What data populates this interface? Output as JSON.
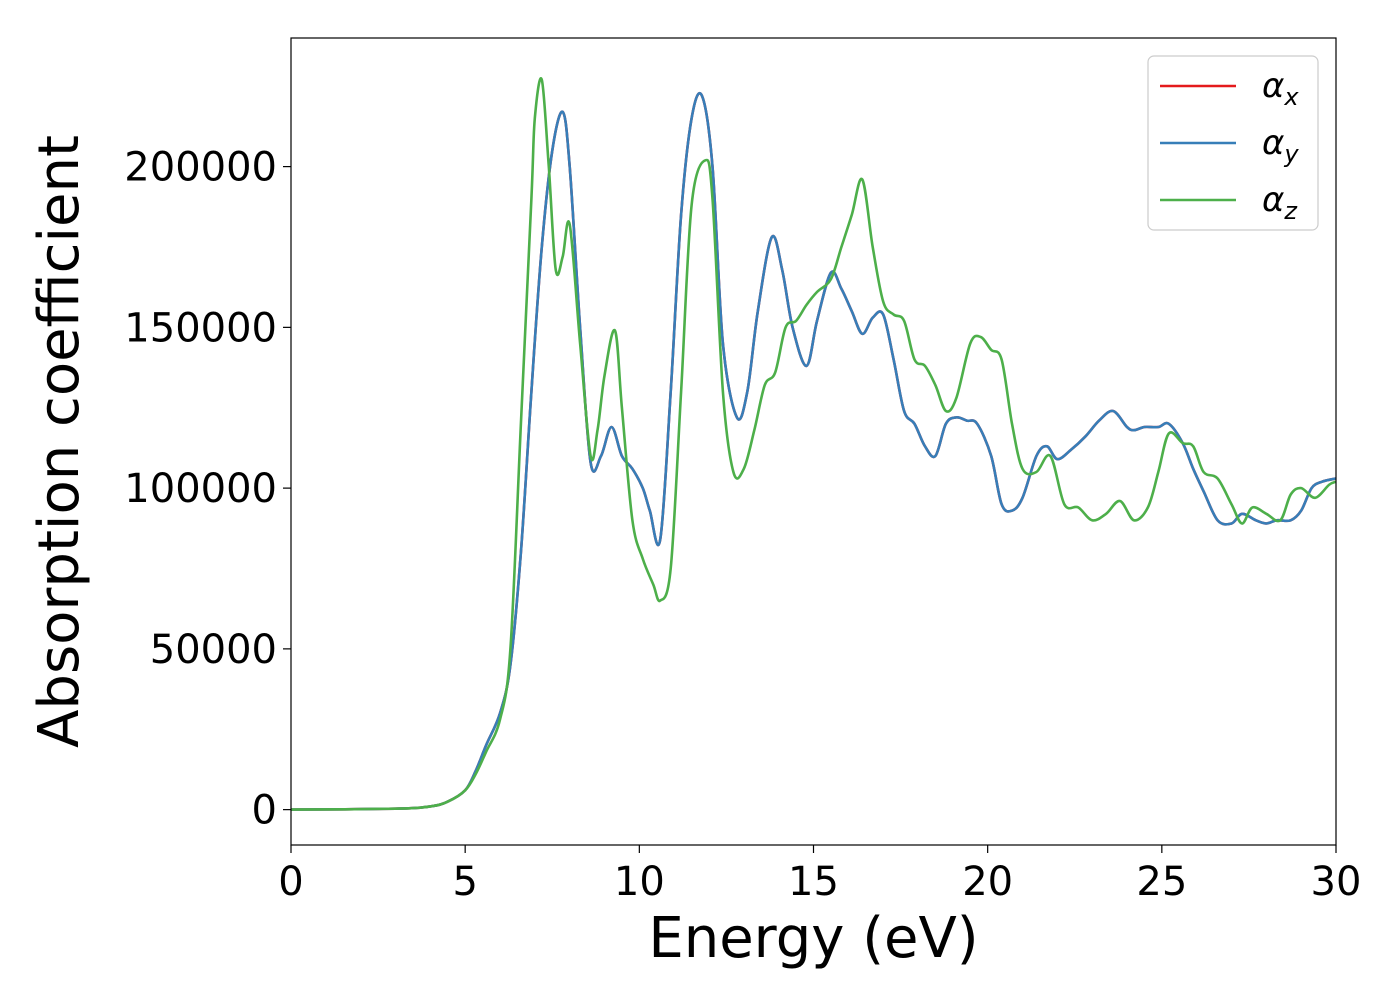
{
  "chart_data": {
    "type": "line",
    "title": "",
    "xlabel": "Energy (eV)",
    "ylabel": "Absorption coefficient",
    "xlim": [
      0,
      30
    ],
    "ylim": [
      -11000,
      240000
    ],
    "xticks": [
      0,
      5,
      10,
      15,
      20,
      25,
      30
    ],
    "yticks": [
      0,
      50000,
      100000,
      150000,
      200000
    ],
    "grid": false,
    "legend_position": "top-right",
    "series": [
      {
        "name": "α",
        "subscript": "x",
        "color": "#e41a1c",
        "x": [
          0,
          3,
          4,
          4.5,
          5,
          5.3,
          5.6,
          6,
          6.3,
          6.6,
          6.9,
          7.2,
          7.5,
          7.8,
          8.0,
          8.3,
          8.6,
          8.9,
          9.2,
          9.5,
          9.8,
          10.1,
          10.3,
          10.6,
          10.9,
          11.2,
          11.5,
          11.8,
          12.1,
          12.4,
          12.8,
          13.1,
          13.4,
          13.8,
          14.1,
          14.4,
          14.8,
          15.1,
          15.5,
          15.8,
          16.1,
          16.4,
          16.7,
          17.0,
          17.3,
          17.6,
          17.9,
          18.2,
          18.5,
          18.8,
          19.1,
          19.4,
          19.7,
          20.1,
          20.4,
          20.7,
          21.0,
          21.4,
          21.7,
          22.0,
          22.4,
          22.8,
          23.2,
          23.6,
          24.0,
          24.2,
          24.5,
          24.9,
          25.2,
          25.6,
          25.9,
          26.2,
          26.6,
          27.0,
          27.3,
          27.7,
          28.0,
          28.3,
          28.7,
          29.0,
          29.3,
          29.6,
          30.0
        ],
        "y": [
          0,
          300,
          1000,
          2500,
          6000,
          12000,
          20000,
          30000,
          45000,
          80000,
          130000,
          175000,
          205000,
          217000,
          200000,
          150000,
          108000,
          110000,
          119000,
          110000,
          106000,
          100000,
          93000,
          84000,
          130000,
          185000,
          215000,
          222000,
          200000,
          145000,
          122000,
          130000,
          155000,
          178000,
          168000,
          150000,
          138000,
          152000,
          167000,
          162000,
          155000,
          148000,
          153000,
          154000,
          140000,
          124000,
          120000,
          113000,
          110000,
          120000,
          122000,
          121000,
          120000,
          110000,
          95000,
          93000,
          97000,
          110000,
          113000,
          109000,
          112000,
          116000,
          121000,
          124000,
          119000,
          118000,
          119000,
          119000,
          120000,
          114000,
          106000,
          99000,
          90000,
          89000,
          92000,
          90000,
          89000,
          90000,
          90000,
          93000,
          100000,
          102000,
          103000
        ]
      },
      {
        "name": "α",
        "subscript": "y",
        "color": "#377eb8",
        "x": [
          0,
          3,
          4,
          4.5,
          5,
          5.3,
          5.6,
          6,
          6.3,
          6.6,
          6.9,
          7.2,
          7.5,
          7.8,
          8.0,
          8.3,
          8.6,
          8.9,
          9.2,
          9.5,
          9.8,
          10.1,
          10.3,
          10.6,
          10.9,
          11.2,
          11.5,
          11.8,
          12.1,
          12.4,
          12.8,
          13.1,
          13.4,
          13.8,
          14.1,
          14.4,
          14.8,
          15.1,
          15.5,
          15.8,
          16.1,
          16.4,
          16.7,
          17.0,
          17.3,
          17.6,
          17.9,
          18.2,
          18.5,
          18.8,
          19.1,
          19.4,
          19.7,
          20.1,
          20.4,
          20.7,
          21.0,
          21.4,
          21.7,
          22.0,
          22.4,
          22.8,
          23.2,
          23.6,
          24.0,
          24.2,
          24.5,
          24.9,
          25.2,
          25.6,
          25.9,
          26.2,
          26.6,
          27.0,
          27.3,
          27.7,
          28.0,
          28.3,
          28.7,
          29.0,
          29.3,
          29.6,
          30.0
        ],
        "y": [
          0,
          300,
          1000,
          2500,
          6000,
          12000,
          20000,
          30000,
          45000,
          80000,
          130000,
          175000,
          205000,
          217000,
          200000,
          150000,
          108000,
          110000,
          119000,
          110000,
          106000,
          100000,
          93000,
          84000,
          130000,
          185000,
          215000,
          222000,
          200000,
          145000,
          122000,
          130000,
          155000,
          178000,
          168000,
          150000,
          138000,
          152000,
          167000,
          162000,
          155000,
          148000,
          153000,
          154000,
          140000,
          124000,
          120000,
          113000,
          110000,
          120000,
          122000,
          121000,
          120000,
          110000,
          95000,
          93000,
          97000,
          110000,
          113000,
          109000,
          112000,
          116000,
          121000,
          124000,
          119000,
          118000,
          119000,
          119000,
          120000,
          114000,
          106000,
          99000,
          90000,
          89000,
          92000,
          90000,
          89000,
          90000,
          90000,
          93000,
          100000,
          102000,
          103000
        ]
      },
      {
        "name": "α",
        "subscript": "z",
        "color": "#4daf4a",
        "x": [
          0,
          3,
          4,
          4.5,
          5,
          5.3,
          5.6,
          6,
          6.3,
          6.6,
          6.9,
          7.0,
          7.2,
          7.4,
          7.6,
          7.8,
          8.0,
          8.3,
          8.6,
          8.8,
          9.0,
          9.3,
          9.5,
          9.8,
          10.1,
          10.4,
          10.6,
          10.9,
          11.2,
          11.5,
          11.9,
          12.1,
          12.4,
          12.7,
          13.0,
          13.3,
          13.6,
          13.9,
          14.2,
          14.5,
          14.8,
          15.1,
          15.5,
          15.8,
          16.1,
          16.4,
          16.7,
          17.0,
          17.3,
          17.6,
          17.9,
          18.2,
          18.5,
          18.8,
          19.1,
          19.5,
          19.8,
          20.1,
          20.4,
          20.7,
          21.0,
          21.4,
          21.8,
          22.2,
          22.6,
          23.0,
          23.4,
          23.8,
          24.2,
          24.6,
          24.9,
          25.2,
          25.6,
          25.9,
          26.2,
          26.6,
          27.0,
          27.3,
          27.6,
          28.0,
          28.4,
          28.7,
          29.0,
          29.4,
          29.8,
          30.0
        ],
        "y": [
          0,
          300,
          1000,
          2500,
          6000,
          11000,
          18000,
          28000,
          50000,
          120000,
          190000,
          215000,
          227000,
          200000,
          168000,
          172000,
          182000,
          145000,
          110000,
          118000,
          135000,
          149000,
          125000,
          90000,
          78000,
          70000,
          65000,
          75000,
          130000,
          188000,
          202000,
          190000,
          130000,
          105000,
          106000,
          118000,
          132000,
          136000,
          150000,
          152000,
          157000,
          161000,
          165000,
          175000,
          185000,
          196000,
          175000,
          158000,
          154000,
          152000,
          140000,
          138000,
          132000,
          124000,
          128000,
          145000,
          147000,
          143000,
          140000,
          120000,
          106000,
          105000,
          110000,
          95000,
          94000,
          90000,
          92000,
          96000,
          90000,
          94000,
          105000,
          117000,
          114000,
          113000,
          105000,
          103000,
          95000,
          89000,
          94000,
          92000,
          90000,
          98000,
          100000,
          97000,
          101000,
          102000
        ]
      }
    ]
  }
}
